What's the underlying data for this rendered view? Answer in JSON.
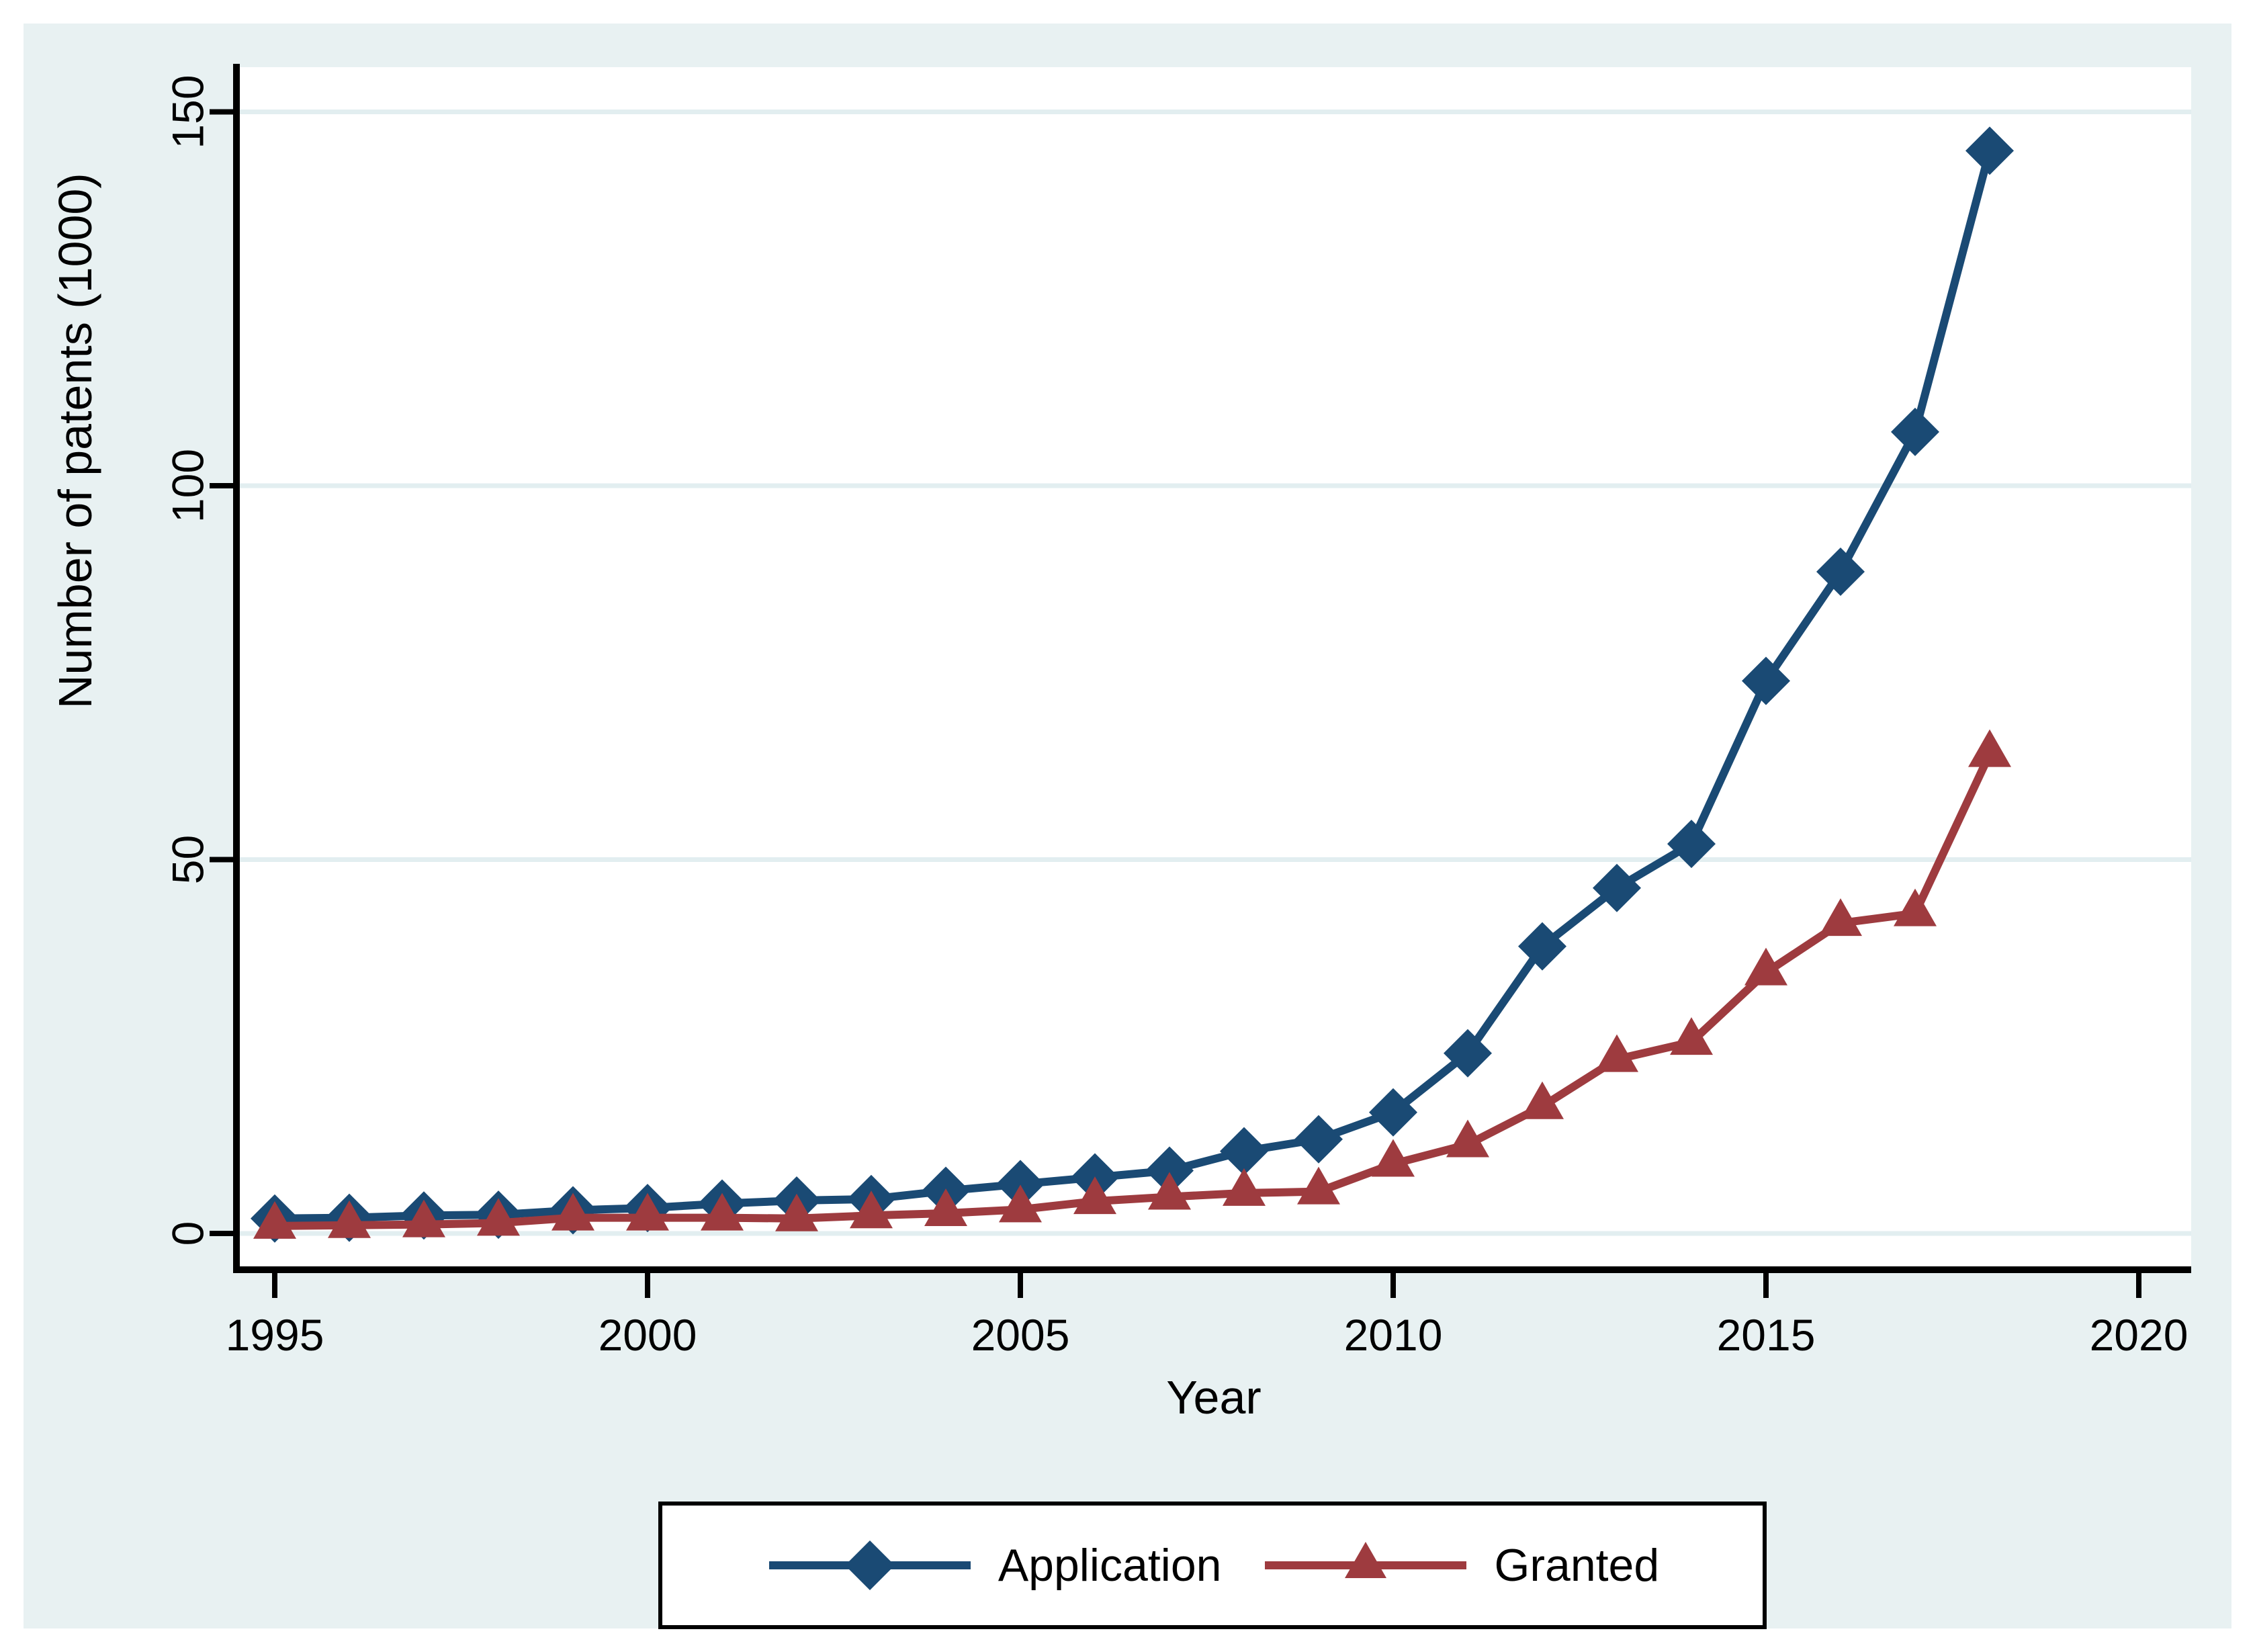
{
  "figure": {
    "background_color": "#E8F1F2",
    "plot_background_color": "#FFFFFF",
    "gridline_color": "#E2EEF0",
    "axis_color": "#000000"
  },
  "chart_data": {
    "type": "line",
    "title": "",
    "xlabel": "Year",
    "ylabel": "Number of patents (1000)",
    "x": [
      1995,
      1996,
      1997,
      1998,
      1999,
      2000,
      2001,
      2002,
      2003,
      2004,
      2005,
      2006,
      2007,
      2008,
      2009,
      2010,
      2011,
      2012,
      2013,
      2014,
      2015,
      2016,
      2017,
      2018
    ],
    "series": [
      {
        "name": "Application",
        "color": "#1A4A74",
        "marker": "diamond",
        "values": [
          2.0,
          2.1,
          2.4,
          2.5,
          3.1,
          3.4,
          4.0,
          4.4,
          4.6,
          5.7,
          6.6,
          7.5,
          8.4,
          11.0,
          12.6,
          16.2,
          24.1,
          38.4,
          46.2,
          52.1,
          73.9,
          88.5,
          107.2,
          144.8
        ]
      },
      {
        "name": "Granted",
        "color": "#9E3B3F",
        "marker": "triangle",
        "values": [
          1.0,
          1.1,
          1.2,
          1.4,
          2.1,
          2.1,
          2.1,
          2.0,
          2.4,
          2.7,
          3.2,
          4.3,
          4.9,
          5.4,
          5.6,
          9.3,
          11.9,
          17.0,
          23.3,
          25.6,
          34.9,
          41.5,
          42.8,
          64.1
        ]
      }
    ],
    "xticks": [
      1995,
      2000,
      2005,
      2010,
      2015,
      2020
    ],
    "yticks": [
      0,
      50,
      100,
      150
    ],
    "xlim": [
      1990,
      2021
    ],
    "ylim": [
      0,
      156
    ],
    "grid": "horizontal",
    "legend_position": "bottom"
  }
}
